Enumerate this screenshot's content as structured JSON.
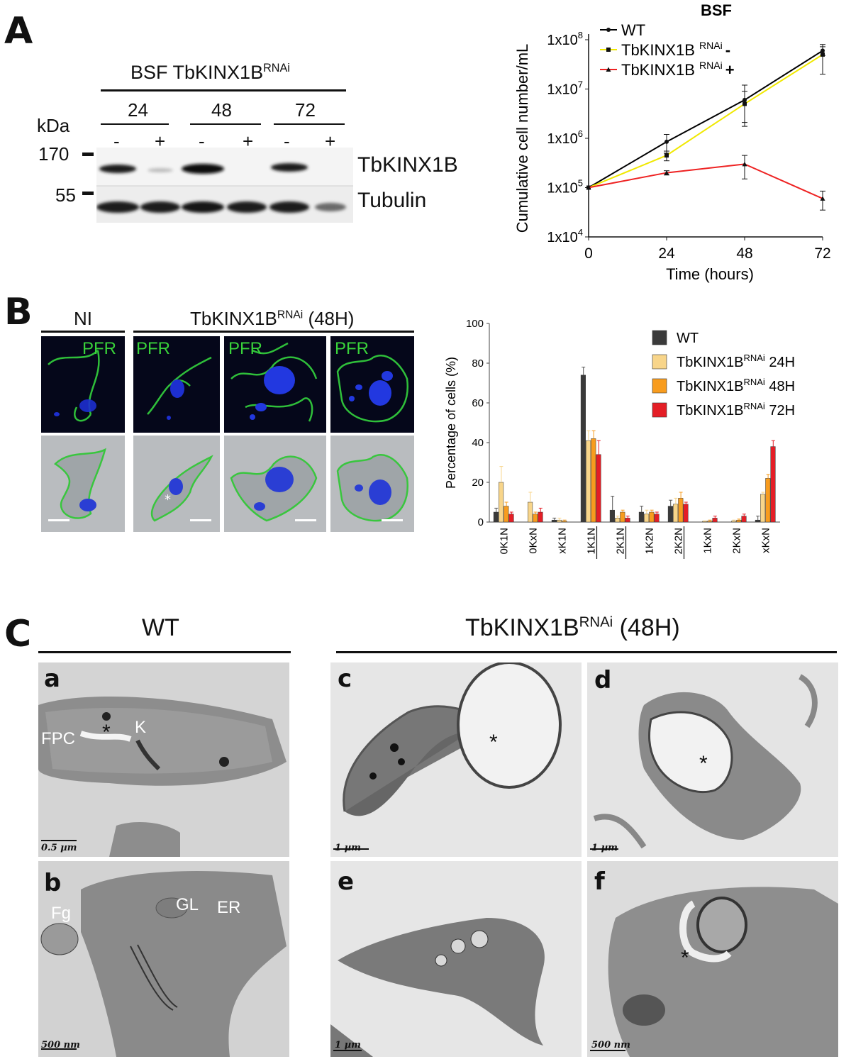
{
  "panel_letters": {
    "a": "A",
    "b": "B",
    "c": "C"
  },
  "panel_a": {
    "blot": {
      "header": "BSF TbKINX1B",
      "header_sup": "RNAi",
      "kda_label": "kDa",
      "timepoints": [
        "24",
        "48",
        "72"
      ],
      "lane_signs": [
        "-",
        "+",
        "-",
        "+",
        "-",
        "+"
      ],
      "markers": [
        "170",
        "55"
      ],
      "band_labels": [
        "TbKINX1B",
        "Tubulin"
      ]
    },
    "growth_chart": {
      "title": "BSF",
      "ylabel": "Cumulative cell number/mL",
      "xlabel": "Time (hours)",
      "x_ticks": [
        "0",
        "24",
        "48",
        "72"
      ],
      "y_ticks": [
        {
          "base": "1x10",
          "exp": "4"
        },
        {
          "base": "1x10",
          "exp": "5"
        },
        {
          "base": "1x10",
          "exp": "6"
        },
        {
          "base": "1x10",
          "exp": "7"
        },
        {
          "base": "1x10",
          "exp": "8"
        }
      ],
      "legend": [
        {
          "name": "WT",
          "sup": "",
          "sign": "",
          "color": "#000000"
        },
        {
          "name": "TbKINX1B ",
          "sup": "RNAi",
          "sign": "-",
          "color": "#f0e800"
        },
        {
          "name": "TbKINX1B ",
          "sup": "RNAi",
          "sign": "+",
          "color": "#ee2222"
        }
      ]
    }
  },
  "chart_data": [
    {
      "type": "line",
      "title": "BSF",
      "xlabel": "Time (hours)",
      "ylabel": "Cumulative cell number/mL",
      "y_scale": "log",
      "xlim": [
        0,
        72
      ],
      "ylim": [
        10000,
        100000000
      ],
      "x": [
        0,
        24,
        48,
        72
      ],
      "series": [
        {
          "name": "WT",
          "color": "#000000",
          "values": [
            100000,
            850000,
            6000000,
            60000000
          ],
          "errors": [
            0,
            350000,
            6000000,
            12000000
          ]
        },
        {
          "name": "TbKINX1B RNAi -",
          "color": "#f0e800",
          "values": [
            100000,
            450000,
            5000000,
            50000000
          ],
          "errors": [
            0,
            100000,
            4000000,
            30000000
          ]
        },
        {
          "name": "TbKINX1B RNAi +",
          "color": "#ee2222",
          "values": [
            100000,
            200000,
            300000,
            60000
          ],
          "errors": [
            0,
            20000,
            150000,
            25000
          ]
        }
      ],
      "legend_position": "top-left"
    },
    {
      "type": "bar",
      "ylabel": "Percentage of cells (%)",
      "ylim": [
        0,
        100
      ],
      "y_ticks": [
        "0",
        "20",
        "40",
        "60",
        "80",
        "100"
      ],
      "categories": [
        "0K1N",
        "0KxN",
        "xK1N",
        "1K1N",
        "2K1N",
        "1K2N",
        "2K2N",
        "1KxN",
        "2KxN",
        "xKxN"
      ],
      "underlined_categories": [
        "1K1N",
        "2K1N",
        "2K2N"
      ],
      "series": [
        {
          "name": "WT",
          "suffix": "",
          "color": "#3a3a3a",
          "values": [
            5,
            0,
            1,
            74,
            6,
            5,
            8,
            0,
            0,
            1
          ],
          "errors": [
            2,
            0,
            1,
            4,
            7,
            3,
            3,
            0,
            0,
            2
          ]
        },
        {
          "name": "TbKINX1B",
          "sup": "RNAi",
          "suffix": " 24H",
          "color": "#f8d58a",
          "values": [
            20,
            10,
            1,
            41,
            2,
            4,
            9,
            0.3,
            0.5,
            14
          ],
          "errors": [
            8,
            5,
            1,
            5,
            1,
            2,
            3,
            0.3,
            0.5,
            1
          ]
        },
        {
          "name": "TbKINX1B",
          "sup": "RNAi",
          "suffix": " 48H",
          "color": "#f89c1e",
          "values": [
            8,
            4,
            0.5,
            42,
            5,
            5,
            12,
            0.5,
            1,
            22
          ],
          "errors": [
            2,
            1,
            0.5,
            4,
            1,
            1,
            3,
            0.5,
            0.5,
            2
          ]
        },
        {
          "name": "TbKINX1B",
          "sup": "RNAi",
          "suffix": " 72H",
          "color": "#e41e26",
          "values": [
            4,
            5,
            0,
            34,
            2,
            4,
            9,
            2,
            3,
            38
          ],
          "errors": [
            1,
            2,
            0,
            7,
            1,
            1,
            1,
            1,
            1,
            3
          ]
        }
      ],
      "legend_position": "top-right"
    }
  ],
  "panel_b": {
    "ni_label": "NI",
    "rnai_label": "TbKINX1B",
    "rnai_sup": "RNAi",
    "rnai_suffix": " (48H)",
    "channel_label": "PFR",
    "asterisk": "*"
  },
  "panel_c": {
    "wt_label": "WT",
    "rnai_label": "TbKINX1B",
    "rnai_sup": "RNAi",
    "rnai_suffix": " (48H)",
    "images": [
      {
        "letter": "a",
        "scale": "0.5 µm",
        "labels": [
          "FPC",
          "*",
          "K"
        ]
      },
      {
        "letter": "b",
        "scale": "500 nm",
        "labels": [
          "Fg",
          "GL",
          "ER"
        ]
      },
      {
        "letter": "c",
        "scale": "1 µm",
        "labels": [
          "*"
        ]
      },
      {
        "letter": "d",
        "scale": "1 µm",
        "labels": [
          "*"
        ]
      },
      {
        "letter": "e",
        "scale": "1 µm",
        "labels": []
      },
      {
        "letter": "f",
        "scale": "500 nm",
        "labels": [
          "*"
        ]
      }
    ]
  }
}
